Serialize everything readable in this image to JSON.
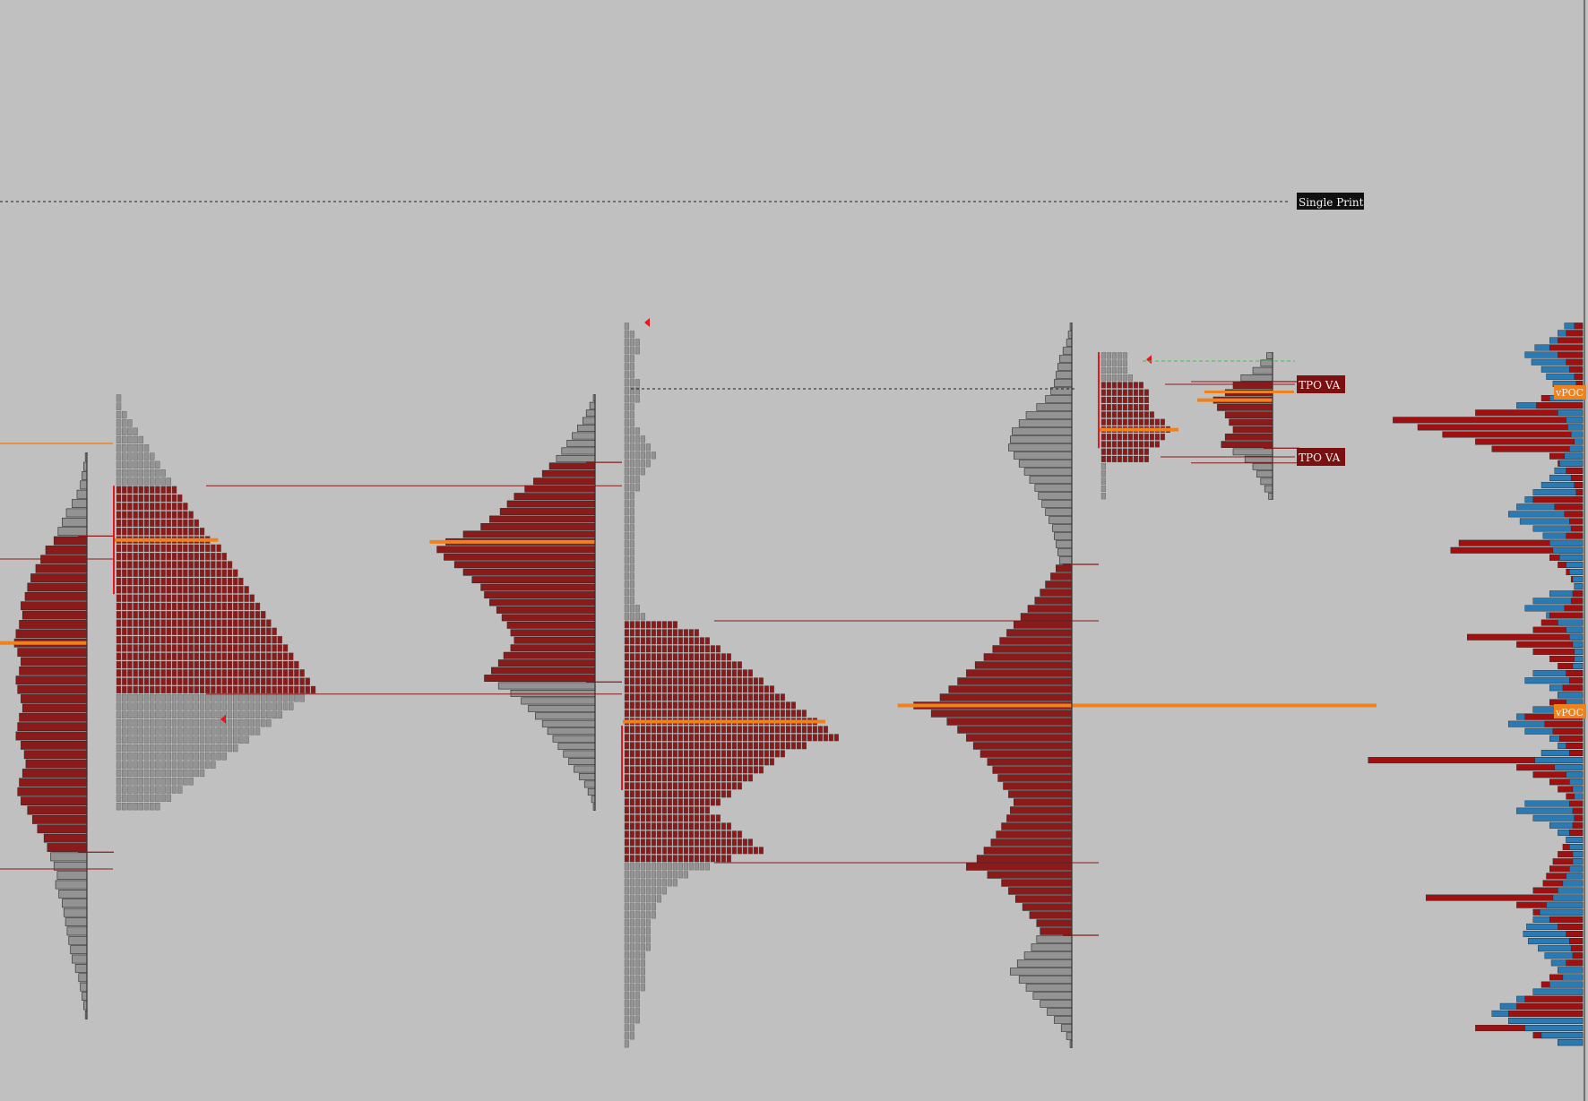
{
  "colors": {
    "background": "#c0c0c0",
    "value_area": "#8b1a1a",
    "outside_value_area": "#939393",
    "poc": "#f0821e",
    "value_area_line": "#8b1a1a",
    "initial_balance": "#e8141e",
    "single_print_line": "#1e1e1e",
    "buy_volume": "#2a7ab4",
    "sell_volume": "#a01010",
    "label_dark": "#101010",
    "label_value_area": "#7a1010",
    "label_text": "#f2f2f2",
    "green_dashed": "#3cc83c"
  },
  "labels": {
    "single_print": "Single Print",
    "tpo_va_high": "TPO VA",
    "tpo_va_low": "TPO VA",
    "vpoc_upper": "vPOC",
    "vpoc_lower": "vPOC"
  },
  "chart_data": {
    "type": "bar",
    "description_free": true,
    "sessions": [
      {
        "id": "session-1",
        "tpo_profile": [],
        "volume_profile": {
          "levels": 61,
          "value_area_rows": [
            9,
            42
          ],
          "poc_row": 20,
          "widths": [
            2,
            4,
            6,
            8,
            12,
            18,
            25,
            30,
            35,
            40,
            50,
            56,
            62,
            68,
            72,
            75,
            80,
            78,
            82,
            86,
            88,
            84,
            80,
            82,
            86,
            84,
            80,
            78,
            82,
            84,
            86,
            80,
            76,
            74,
            78,
            82,
            84,
            80,
            72,
            66,
            60,
            52,
            48,
            44,
            40,
            36,
            38,
            34,
            30,
            28,
            26,
            24,
            22,
            20,
            18,
            14,
            10,
            8,
            6,
            4,
            2
          ]
        }
      },
      {
        "id": "session-2",
        "tpo_profile": {
          "levels": 50,
          "value_area_rows": [
            11,
            35
          ],
          "poc_row": 17,
          "ib_rows": [
            11,
            23
          ],
          "widths": [
            1,
            1,
            2,
            3,
            4,
            5,
            6,
            7,
            8,
            9,
            10,
            11,
            12,
            13,
            14,
            15,
            16,
            17,
            19,
            20,
            21,
            22,
            23,
            24,
            25,
            26,
            27,
            28,
            29,
            30,
            31,
            32,
            33,
            34,
            35,
            36,
            34,
            32,
            30,
            28,
            26,
            24,
            22,
            20,
            18,
            16,
            14,
            12,
            10,
            8
          ]
        },
        "volume_profile": {
          "levels": 55,
          "value_area_rows": [
            9,
            37
          ],
          "poc_row": 19,
          "widths": [
            2,
            6,
            10,
            14,
            20,
            26,
            32,
            38,
            44,
            52,
            60,
            70,
            80,
            92,
            100,
            108,
            120,
            130,
            150,
            170,
            180,
            172,
            160,
            150,
            140,
            130,
            126,
            120,
            112,
            106,
            100,
            96,
            92,
            96,
            104,
            110,
            118,
            126,
            110,
            96,
            84,
            76,
            68,
            60,
            54,
            48,
            42,
            36,
            30,
            24,
            18,
            12,
            8,
            4,
            2
          ]
        }
      },
      {
        "id": "session-3",
        "tpo_profile": {
          "levels": 90,
          "value_area_rows": [
            37,
            66
          ],
          "poc_row": 49,
          "ib_rows": [
            50,
            57
          ],
          "widths": [
            1,
            2,
            3,
            3,
            2,
            2,
            2,
            3,
            3,
            3,
            2,
            2,
            2,
            3,
            4,
            5,
            6,
            5,
            4,
            3,
            3,
            2,
            2,
            2,
            2,
            2,
            2,
            2,
            2,
            2,
            2,
            2,
            2,
            2,
            2,
            3,
            4,
            10,
            14,
            16,
            18,
            20,
            22,
            24,
            26,
            28,
            30,
            32,
            34,
            36,
            38,
            40,
            34,
            30,
            28,
            26,
            24,
            22,
            20,
            18,
            16,
            18,
            20,
            22,
            24,
            26,
            20,
            16,
            12,
            10,
            8,
            7,
            6,
            6,
            5,
            5,
            5,
            5,
            4,
            4,
            4,
            4,
            4,
            3,
            3,
            3,
            3,
            2,
            2,
            1
          ]
        },
        "volume_profile": {
          "levels": 90,
          "value_area_rows": [
            30,
            75
          ],
          "poc_row": 47,
          "widths": [
            2,
            4,
            6,
            10,
            14,
            16,
            18,
            20,
            24,
            30,
            40,
            52,
            60,
            68,
            70,
            72,
            66,
            60,
            54,
            48,
            42,
            38,
            34,
            30,
            26,
            22,
            20,
            18,
            16,
            14,
            18,
            24,
            30,
            36,
            42,
            50,
            58,
            66,
            74,
            82,
            90,
            100,
            110,
            120,
            130,
            140,
            150,
            180,
            160,
            142,
            130,
            120,
            112,
            104,
            96,
            90,
            84,
            78,
            72,
            66,
            70,
            74,
            80,
            86,
            92,
            100,
            108,
            120,
            96,
            80,
            72,
            64,
            56,
            48,
            40,
            36,
            40,
            46,
            54,
            62,
            70,
            60,
            52,
            44,
            36,
            28,
            20,
            12,
            6,
            2
          ]
        }
      },
      {
        "id": "session-4",
        "tpo_profile": {
          "levels": 20,
          "value_area_rows": [
            4,
            14
          ],
          "poc_row": 10,
          "ib_rows": [
            0,
            12
          ],
          "widths": [
            5,
            5,
            5,
            6,
            8,
            9,
            9,
            9,
            10,
            12,
            13,
            12,
            11,
            9,
            9,
            1,
            1,
            1,
            1,
            1
          ]
        },
        "volume_profile": {
          "levels": 20,
          "value_area_rows": [
            4,
            12
          ],
          "poc_row": 6,
          "widths": [
            3,
            6,
            10,
            16,
            20,
            24,
            30,
            28,
            24,
            22,
            20,
            24,
            26,
            20,
            14,
            10,
            8,
            6,
            4,
            2
          ]
        }
      }
    ],
    "bid_ask_volume": {
      "levels": 100,
      "buy": [
        22,
        30,
        40,
        58,
        70,
        62,
        50,
        44,
        36,
        30,
        40,
        80,
        30,
        20,
        18,
        14,
        10,
        16,
        22,
        28,
        34,
        40,
        50,
        60,
        70,
        80,
        90,
        76,
        60,
        48,
        40,
        36,
        28,
        20,
        16,
        12,
        10,
        40,
        60,
        70,
        44,
        30,
        20,
        16,
        12,
        10,
        10,
        12,
        60,
        70,
        40,
        30,
        20,
        60,
        80,
        90,
        70,
        40,
        30,
        50,
        58,
        34,
        20,
        16,
        12,
        10,
        70,
        80,
        60,
        40,
        30,
        20,
        16,
        12,
        12,
        16,
        20,
        24,
        30,
        36,
        44,
        52,
        60,
        68,
        72,
        66,
        54,
        46,
        38,
        30,
        24,
        40,
        60,
        80,
        100,
        110,
        90,
        70,
        50,
        30
      ],
      "sell": [
        10,
        20,
        30,
        40,
        30,
        20,
        16,
        10,
        8,
        6,
        50,
        56,
        130,
        230,
        200,
        170,
        130,
        110,
        40,
        30,
        20,
        14,
        10,
        8,
        60,
        34,
        22,
        16,
        14,
        20,
        150,
        160,
        40,
        30,
        20,
        14,
        10,
        12,
        14,
        22,
        40,
        50,
        60,
        140,
        80,
        60,
        40,
        30,
        20,
        16,
        24,
        30,
        40,
        60,
        70,
        46,
        36,
        28,
        20,
        16,
        260,
        80,
        60,
        40,
        30,
        20,
        16,
        12,
        10,
        12,
        16,
        20,
        24,
        30,
        36,
        40,
        44,
        48,
        60,
        190,
        80,
        60,
        40,
        30,
        20,
        16,
        14,
        12,
        20,
        30,
        40,
        50,
        60,
        70,
        80,
        90,
        90,
        130,
        60,
        30
      ]
    }
  }
}
